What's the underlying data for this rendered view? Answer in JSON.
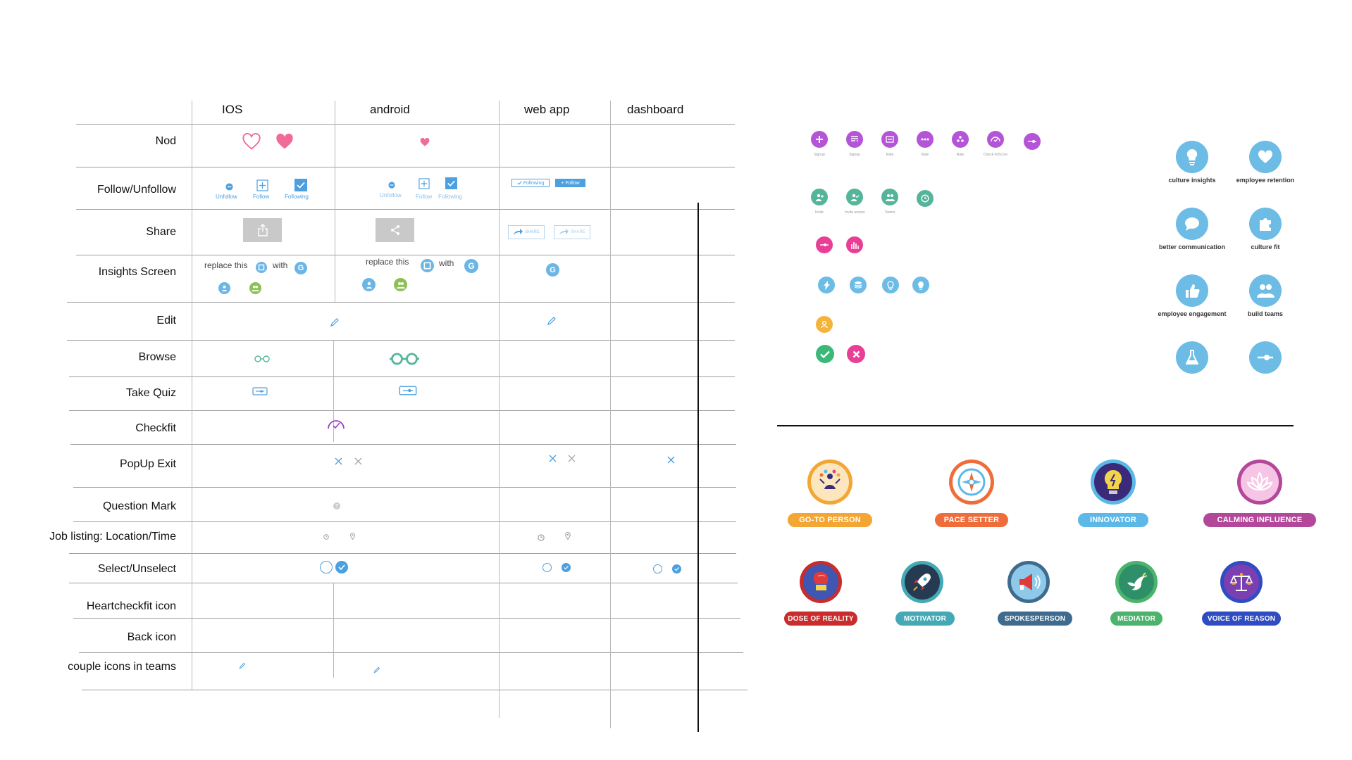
{
  "columns": [
    "IOS",
    "android",
    "web app",
    "dashboard"
  ],
  "rows": [
    "Nod",
    "Follow/Unfollow",
    "Share",
    "Insights Screen",
    "Edit",
    "Browse",
    "Take Quiz",
    "Checkfit",
    "PopUp Exit",
    "Question Mark",
    "Job listing: Location/Time",
    "Select/Unselect",
    "Heartcheckfit icon",
    "Back icon",
    "couple icons in teams"
  ],
  "follow": {
    "ios": {
      "unfollow": "Unfollow",
      "follow": "Follow",
      "following": "Following"
    },
    "android": {
      "unfollow": "Unfollow",
      "follow": "Follow",
      "following": "Following"
    },
    "web": {
      "following": "Following",
      "follow": "+ Follow"
    }
  },
  "share": {
    "web_label": "SHARE"
  },
  "insights": {
    "replace": "replace this",
    "with": "with",
    "g": "G"
  },
  "panel": {
    "row1_captions": [
      "Signup",
      "Signup",
      "Rate",
      "Rate",
      "Rate",
      "Check FitScore"
    ],
    "row2_captions": [
      "Invite",
      "Invite accept",
      "Teams"
    ]
  },
  "big_icons": [
    {
      "label": "culture insights",
      "icon": "bulb-icon"
    },
    {
      "label": "employee retention",
      "icon": "heart-icon"
    },
    {
      "label": "better communication",
      "icon": "chat-icon"
    },
    {
      "label": "culture fit",
      "icon": "puzzle-icon"
    },
    {
      "label": "employee engagement",
      "icon": "thumbs-up-icon"
    },
    {
      "label": "build teams",
      "icon": "people-icon"
    },
    {
      "label": "",
      "icon": "flask-icon"
    },
    {
      "label": "",
      "icon": "slider-icon"
    }
  ],
  "badges_row1": [
    {
      "label": "GO-TO PERSON",
      "color": "#f3a633",
      "icon": "juggler-icon"
    },
    {
      "label": "PACE SETTER",
      "color": "#ee6d3b",
      "icon": "compass-icon"
    },
    {
      "label": "INNOVATOR",
      "color": "#5cb8e6",
      "icon": "lightbulb-icon"
    },
    {
      "label": "CALMING INFLUENCE",
      "color": "#b3479a",
      "icon": "lotus-icon"
    }
  ],
  "badges_row2": [
    {
      "label": "DOSE OF REALITY",
      "color": "#c82c2c",
      "icon": "boxing-glove-icon"
    },
    {
      "label": "MOTIVATOR",
      "color": "#45a9b5",
      "icon": "rocket-icon"
    },
    {
      "label": "SPOKESPERSON",
      "color": "#3f6c8e",
      "icon": "megaphone-icon"
    },
    {
      "label": "MEDIATOR",
      "color": "#4cb36c",
      "icon": "dove-icon"
    },
    {
      "label": "VOICE OF REASON",
      "color": "#2f4cc2",
      "icon": "scales-icon"
    }
  ],
  "colors": {
    "blue": "#4ca0e0",
    "pink": "#f06b95",
    "green": "#5cb89a",
    "purple": "#b355d6",
    "teal": "#55b59a"
  }
}
